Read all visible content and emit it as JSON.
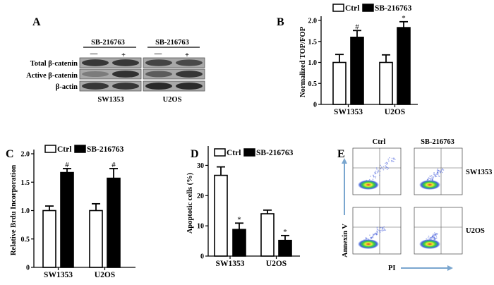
{
  "panel_labels": {
    "a": "A",
    "b": "B",
    "c": "C",
    "d": "D",
    "e": "E"
  },
  "western_blot": {
    "treatment_label": "SB-216763",
    "signs": [
      "—",
      "+"
    ],
    "rows": [
      "Total β-catenin",
      "Active β-catenin",
      "β-actin"
    ],
    "cell_lines": [
      "SW1353",
      "U2OS"
    ]
  },
  "flow": {
    "columns": [
      "Ctrl",
      "SB-216763"
    ],
    "rows": [
      "SW1353",
      "U2OS"
    ],
    "ylabel": "Annexin V",
    "xlabel": "PI",
    "arrow_color": "#7aa6cf"
  },
  "colors": {
    "ctrl": "#ffffff",
    "treated": "#000000",
    "axis": "#000000"
  },
  "chart_data": [
    {
      "id": "B",
      "type": "bar",
      "categories": [
        "SW1353",
        "U2OS"
      ],
      "series": [
        {
          "name": "Ctrl",
          "values": [
            1.0,
            1.0
          ],
          "errors": [
            0.19,
            0.18
          ],
          "annotations": [
            "",
            ""
          ]
        },
        {
          "name": "SB-216763",
          "values": [
            1.6,
            1.83
          ],
          "errors": [
            0.16,
            0.14
          ],
          "annotations": [
            "#",
            "*"
          ]
        }
      ],
      "ylabel": "Normalized TOP/FOP",
      "ylim": [
        0,
        2.0
      ],
      "yticks": [
        "0",
        "0.5",
        "1.0",
        "1.5",
        "2.0"
      ],
      "legend": "top"
    },
    {
      "id": "C",
      "type": "bar",
      "categories": [
        "SW1353",
        "U2OS"
      ],
      "series": [
        {
          "name": "Ctrl",
          "values": [
            1.0,
            1.0
          ],
          "errors": [
            0.08,
            0.12
          ],
          "annotations": [
            "",
            ""
          ]
        },
        {
          "name": "SB-216763",
          "values": [
            1.67,
            1.57
          ],
          "errors": [
            0.07,
            0.17
          ],
          "annotations": [
            "#",
            "#"
          ]
        }
      ],
      "ylabel": "Relative Brdu Incorporation",
      "ylim": [
        0,
        2.0
      ],
      "yticks": [
        "0",
        "0.5",
        "1.0",
        "1.5",
        "2.0"
      ],
      "legend": "top"
    },
    {
      "id": "D",
      "type": "bar",
      "categories": [
        "SW1353",
        "U2OS"
      ],
      "series": [
        {
          "name": "Ctrl",
          "values": [
            26.7,
            14.0
          ],
          "errors": [
            2.8,
            1.2
          ],
          "annotations": [
            "",
            ""
          ]
        },
        {
          "name": "SB-216763",
          "values": [
            8.8,
            5.2
          ],
          "errors": [
            2.1,
            1.6
          ],
          "annotations": [
            "*",
            "*"
          ]
        }
      ],
      "ylabel": "Apoptotic cells (%)",
      "ylim": [
        0,
        35
      ],
      "yticks": [
        "0",
        "10",
        "20",
        "30"
      ],
      "legend": "top"
    }
  ]
}
